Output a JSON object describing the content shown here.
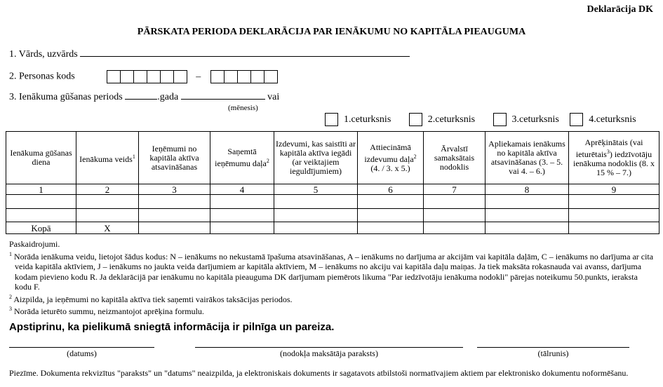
{
  "form_code": "Deklarācija DK",
  "title": "PĀRSKATA PERIODA DEKLARĀCIJA PAR IENĀKUMU NO KAPITĀLA PIEAUGUMA",
  "fields": {
    "name_label": "1. Vārds, uzvārds",
    "code_label": "2. Personas kods",
    "code_dash": "–",
    "period_label": "3. Ienākuma gūšanas periods",
    "year_label": ".gada",
    "or_label": "vai",
    "month_caption": "(mēnesis)"
  },
  "quarters": [
    "1.ceturksnis",
    "2.ceturksnis",
    "3.ceturksnis",
    "4.ceturksnis"
  ],
  "table": {
    "headers": [
      {
        "text": "Ienākuma gūšanas diena",
        "sup": ""
      },
      {
        "text": "Ienākuma veids",
        "sup": "1"
      },
      {
        "text": "Ieņēmumi no kapitāla aktīva atsavināšanas",
        "sup": ""
      },
      {
        "text": "Saņemtā ieņēmumu daļa",
        "sup": "2"
      },
      {
        "text": "Izdevumi, kas saistīti ar kapitāla aktīva iegādi (ar veiktajiem ieguldījumiem)",
        "sup": ""
      },
      {
        "text": "Attiecināmā izdevumu daļa",
        "sup": "2",
        "after": "(4. / 3. x 5.)"
      },
      {
        "text": "Ārvalstī samaksātais nodoklis",
        "sup": ""
      },
      {
        "text": "Apliekamais ienākums no kapitāla aktīva atsavināšanas (3. – 5. vai 4. – 6.)",
        "sup": ""
      },
      {
        "text": "Aprēķinātais (vai ieturētais",
        "sup": "3",
        "after": ") iedzīvotāju ienākuma nodoklis (8. x 15 % – 7.)"
      }
    ],
    "numbers": [
      "1",
      "2",
      "3",
      "4",
      "5",
      "6",
      "7",
      "8",
      "9"
    ],
    "total_label": "Kopā",
    "total_type": "X"
  },
  "notes": {
    "heading": "Paskaidrojumi.",
    "n1": "Norāda ienākuma veidu, lietojot šādus kodus: N – ienākums no nekustamā īpašuma atsavināšanas, A – ienākums no darījuma ar akcijām vai kapitāla daļām, C – ienākums no darījuma ar cita veida kapitāla aktīviem, J – ienākums no jaukta veida darījumiem ar kapitāla aktīviem, M – ienākums no akciju vai kapitāla daļu maiņas. Ja tiek maksāta rokasnauda vai avanss, darījuma kodam pievieno kodu R. Ja deklarācijā par ienākumu no kapitāla pieauguma DK darījumam piemērots likuma \"Par iedzīvotāju ienākuma nodokli\" pārejas noteikumu 50.punkts, ieraksta kodu F.",
    "n2": "Aizpilda, ja ieņēmumi no kapitāla aktīva tiek saņemti vairākos taksācijas periodos.",
    "n3": "Norāda ieturēto summu, neizmantojot aprēķina formulu."
  },
  "confirm": "Apstiprinu, ka pielikumā sniegtā informācija ir pilnīga un pareiza.",
  "signatures": [
    "(datums)",
    "(nodokļa maksātāja paraksts)",
    "(tālrunis)"
  ],
  "footer": "Piezīme. Dokumenta rekvizītus \"paraksts\" un \"datums\" neaizpilda, ja elektroniskais dokuments ir sagatavots atbilstoši normatīvajiem aktiem par elektronisko dokumentu noformēšanu."
}
